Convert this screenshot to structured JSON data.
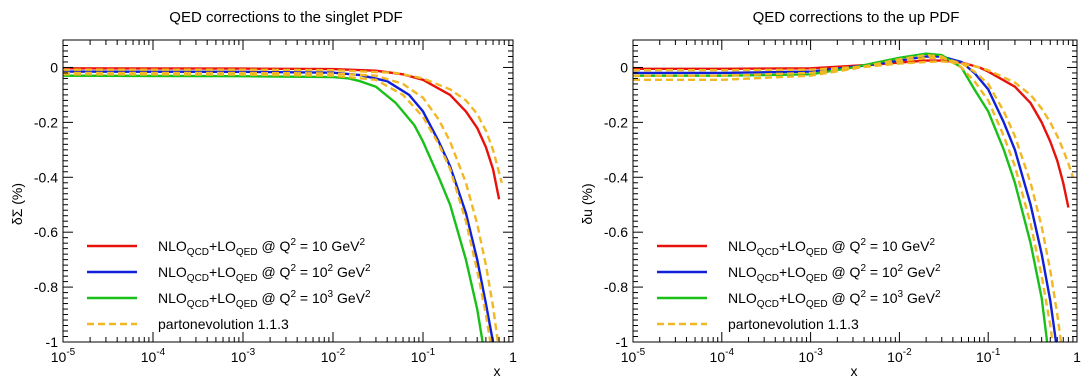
{
  "chart_data": [
    {
      "type": "line",
      "title": "QED corrections to the singlet PDF",
      "xlabel": "x",
      "ylabel": "δΣ (%)",
      "xscale": "log",
      "xlim": [
        1e-05,
        1
      ],
      "ylim": [
        -1,
        0.1
      ],
      "xticks": [
        {
          "value": 1e-05,
          "base": "10",
          "exp": "-5"
        },
        {
          "value": 0.0001,
          "base": "10",
          "exp": "-4"
        },
        {
          "value": 0.001,
          "base": "10",
          "exp": "-3"
        },
        {
          "value": 0.01,
          "base": "10",
          "exp": "-2"
        },
        {
          "value": 0.1,
          "base": "10",
          "exp": "-1"
        },
        {
          "value": 1,
          "base": "1",
          "exp": ""
        }
      ],
      "yticks": [
        {
          "value": 0,
          "label": "0"
        },
        {
          "value": -0.2,
          "label": "-0.2"
        },
        {
          "value": -0.4,
          "label": "-0.4"
        },
        {
          "value": -0.6,
          "label": "-0.6"
        },
        {
          "value": -0.8,
          "label": "-0.8"
        },
        {
          "value": -1,
          "label": "-1"
        }
      ],
      "legend_position": "bottom-left",
      "series": [
        {
          "key": "q10",
          "color": "#e8120c",
          "dash": false,
          "x": [
            1e-05,
            0.001,
            0.01,
            0.03,
            0.06,
            0.1,
            0.2,
            0.3,
            0.4,
            0.5,
            0.6,
            0.7
          ],
          "y": [
            -0.003,
            -0.004,
            -0.006,
            -0.012,
            -0.025,
            -0.045,
            -0.1,
            -0.16,
            -0.22,
            -0.29,
            -0.37,
            -0.48
          ]
        },
        {
          "key": "q100",
          "color": "#1020d8",
          "dash": false,
          "x": [
            1e-05,
            0.001,
            0.01,
            0.02,
            0.04,
            0.07,
            0.1,
            0.15,
            0.2,
            0.3,
            0.4,
            0.5,
            0.6
          ],
          "y": [
            -0.015,
            -0.016,
            -0.019,
            -0.028,
            -0.05,
            -0.1,
            -0.16,
            -0.27,
            -0.36,
            -0.53,
            -0.7,
            -0.86,
            -1.0
          ]
        },
        {
          "key": "q1000",
          "color": "#18c018",
          "dash": false,
          "x": [
            1e-05,
            0.001,
            0.01,
            0.015,
            0.02,
            0.03,
            0.05,
            0.08,
            0.1,
            0.15,
            0.2,
            0.3,
            0.4,
            0.46
          ],
          "y": [
            -0.03,
            -0.032,
            -0.035,
            -0.04,
            -0.05,
            -0.07,
            -0.13,
            -0.21,
            -0.27,
            -0.4,
            -0.5,
            -0.7,
            -0.88,
            -1.0
          ]
        },
        {
          "key": "pe1",
          "color": "#f2b824",
          "dash": true,
          "x": [
            1e-05,
            0.001,
            0.01,
            0.05,
            0.1,
            0.2,
            0.3,
            0.4,
            0.5,
            0.6,
            0.75
          ],
          "y": [
            -0.008,
            -0.008,
            -0.01,
            -0.02,
            -0.04,
            -0.08,
            -0.12,
            -0.17,
            -0.23,
            -0.3,
            -0.42
          ]
        },
        {
          "key": "pe2",
          "color": "#f2b824",
          "dash": true,
          "x": [
            1e-05,
            0.001,
            0.01,
            0.03,
            0.06,
            0.1,
            0.15,
            0.2,
            0.3,
            0.4,
            0.5,
            0.6,
            0.68
          ],
          "y": [
            -0.02,
            -0.02,
            -0.022,
            -0.03,
            -0.06,
            -0.11,
            -0.19,
            -0.27,
            -0.42,
            -0.57,
            -0.72,
            -0.87,
            -1.0
          ]
        },
        {
          "key": "pe3",
          "color": "#f2b824",
          "dash": true,
          "x": [
            1e-05,
            0.001,
            0.01,
            0.03,
            0.06,
            0.1,
            0.15,
            0.2,
            0.3,
            0.4,
            0.5,
            0.56
          ],
          "y": [
            -0.025,
            -0.026,
            -0.03,
            -0.045,
            -0.1,
            -0.18,
            -0.28,
            -0.37,
            -0.56,
            -0.74,
            -0.9,
            -1.0
          ]
        }
      ]
    },
    {
      "type": "line",
      "title": "QED corrections to the up PDF",
      "xlabel": "x",
      "ylabel": "δu (%)",
      "xscale": "log",
      "xlim": [
        1e-05,
        1
      ],
      "ylim": [
        -1,
        0.1
      ],
      "xticks": [
        {
          "value": 1e-05,
          "base": "10",
          "exp": "-5"
        },
        {
          "value": 0.0001,
          "base": "10",
          "exp": "-4"
        },
        {
          "value": 0.001,
          "base": "10",
          "exp": "-3"
        },
        {
          "value": 0.01,
          "base": "10",
          "exp": "-2"
        },
        {
          "value": 0.1,
          "base": "10",
          "exp": "-1"
        },
        {
          "value": 1,
          "base": "1",
          "exp": ""
        }
      ],
      "yticks": [
        {
          "value": 0,
          "label": "0"
        },
        {
          "value": -0.2,
          "label": "-0.2"
        },
        {
          "value": -0.4,
          "label": "-0.4"
        },
        {
          "value": -0.6,
          "label": "-0.6"
        },
        {
          "value": -0.8,
          "label": "-0.8"
        },
        {
          "value": -1,
          "label": "-1"
        }
      ],
      "legend_position": "bottom-left",
      "series": [
        {
          "key": "q10",
          "color": "#e8120c",
          "dash": false,
          "x": [
            1e-05,
            0.0001,
            0.001,
            0.005,
            0.01,
            0.02,
            0.03,
            0.05,
            0.08,
            0.1,
            0.2,
            0.3,
            0.4,
            0.5,
            0.6,
            0.7,
            0.8
          ],
          "y": [
            -0.005,
            -0.005,
            -0.003,
            0.01,
            0.018,
            0.025,
            0.025,
            0.018,
            0.0,
            -0.015,
            -0.07,
            -0.13,
            -0.2,
            -0.27,
            -0.34,
            -0.42,
            -0.51
          ]
        },
        {
          "key": "q100",
          "color": "#1020d8",
          "dash": false,
          "x": [
            1e-05,
            0.0001,
            0.001,
            0.005,
            0.01,
            0.02,
            0.03,
            0.05,
            0.07,
            0.1,
            0.15,
            0.2,
            0.3,
            0.4,
            0.5,
            0.58
          ],
          "y": [
            -0.02,
            -0.02,
            -0.015,
            0.01,
            0.025,
            0.04,
            0.04,
            0.02,
            -0.02,
            -0.08,
            -0.2,
            -0.3,
            -0.5,
            -0.68,
            -0.85,
            -1.0
          ]
        },
        {
          "key": "q1000",
          "color": "#18c018",
          "dash": false,
          "x": [
            1e-05,
            0.0001,
            0.001,
            0.003,
            0.01,
            0.02,
            0.03,
            0.05,
            0.07,
            0.1,
            0.15,
            0.2,
            0.3,
            0.4,
            0.46
          ],
          "y": [
            -0.03,
            -0.03,
            -0.025,
            0.0,
            0.035,
            0.05,
            0.045,
            0.0,
            -0.08,
            -0.16,
            -0.3,
            -0.42,
            -0.64,
            -0.84,
            -1.0
          ]
        },
        {
          "key": "pe1",
          "color": "#f2b824",
          "dash": true,
          "x": [
            1e-05,
            0.0001,
            0.001,
            0.005,
            0.01,
            0.02,
            0.03,
            0.05,
            0.08,
            0.1,
            0.2,
            0.3,
            0.4,
            0.5,
            0.6,
            0.7,
            0.8,
            0.9
          ],
          "y": [
            -0.01,
            -0.01,
            -0.008,
            0.005,
            0.014,
            0.02,
            0.022,
            0.016,
            0.0,
            -0.01,
            -0.055,
            -0.1,
            -0.15,
            -0.2,
            -0.25,
            -0.3,
            -0.35,
            -0.4
          ]
        },
        {
          "key": "pe2",
          "color": "#f2b824",
          "dash": true,
          "x": [
            1e-05,
            0.0001,
            0.001,
            0.005,
            0.01,
            0.02,
            0.03,
            0.05,
            0.07,
            0.1,
            0.15,
            0.2,
            0.3,
            0.4,
            0.5,
            0.6,
            0.66
          ],
          "y": [
            -0.03,
            -0.03,
            -0.02,
            0.005,
            0.022,
            0.035,
            0.035,
            0.015,
            -0.015,
            -0.06,
            -0.16,
            -0.25,
            -0.42,
            -0.58,
            -0.74,
            -0.9,
            -1.0
          ]
        },
        {
          "key": "pe3",
          "color": "#f2b824",
          "dash": true,
          "x": [
            1e-05,
            0.0001,
            0.001,
            0.003,
            0.01,
            0.02,
            0.03,
            0.05,
            0.07,
            0.1,
            0.15,
            0.2,
            0.3,
            0.4,
            0.5,
            0.53
          ],
          "y": [
            -0.045,
            -0.045,
            -0.03,
            -0.005,
            0.03,
            0.045,
            0.04,
            0.0,
            -0.05,
            -0.12,
            -0.25,
            -0.36,
            -0.57,
            -0.76,
            -0.94,
            -1.0
          ]
        }
      ]
    }
  ],
  "legend_items": [
    {
      "series": "q10",
      "color": "#e8120c",
      "dash": false,
      "parts": [
        {
          "t": "NLO",
          "s": "base"
        },
        {
          "t": "QCD",
          "s": "sub"
        },
        {
          "t": "+LO",
          "s": "base"
        },
        {
          "t": "QED",
          "s": "sub"
        },
        {
          "t": " @ Q",
          "s": "base"
        },
        {
          "t": "2",
          "s": "sup"
        },
        {
          "t": " = 10 GeV",
          "s": "base"
        },
        {
          "t": "2",
          "s": "sup"
        }
      ]
    },
    {
      "series": "q100",
      "color": "#1020d8",
      "dash": false,
      "parts": [
        {
          "t": "NLO",
          "s": "base"
        },
        {
          "t": "QCD",
          "s": "sub"
        },
        {
          "t": "+LO",
          "s": "base"
        },
        {
          "t": "QED",
          "s": "sub"
        },
        {
          "t": " @ Q",
          "s": "base"
        },
        {
          "t": "2",
          "s": "sup"
        },
        {
          "t": " = 10",
          "s": "base"
        },
        {
          "t": "2",
          "s": "sup"
        },
        {
          "t": " GeV",
          "s": "base"
        },
        {
          "t": "2",
          "s": "sup"
        }
      ]
    },
    {
      "series": "q1000",
      "color": "#18c018",
      "dash": false,
      "parts": [
        {
          "t": "NLO",
          "s": "base"
        },
        {
          "t": "QCD",
          "s": "sub"
        },
        {
          "t": "+LO",
          "s": "base"
        },
        {
          "t": "QED",
          "s": "sub"
        },
        {
          "t": " @ Q",
          "s": "base"
        },
        {
          "t": "2",
          "s": "sup"
        },
        {
          "t": " = 10",
          "s": "base"
        },
        {
          "t": "3",
          "s": "sup"
        },
        {
          "t": " GeV",
          "s": "base"
        },
        {
          "t": "2",
          "s": "sup"
        }
      ]
    },
    {
      "series": "pe",
      "color": "#f2b824",
      "dash": true,
      "parts": [
        {
          "t": "partonevolution 1.1.3",
          "s": "base"
        }
      ]
    }
  ]
}
